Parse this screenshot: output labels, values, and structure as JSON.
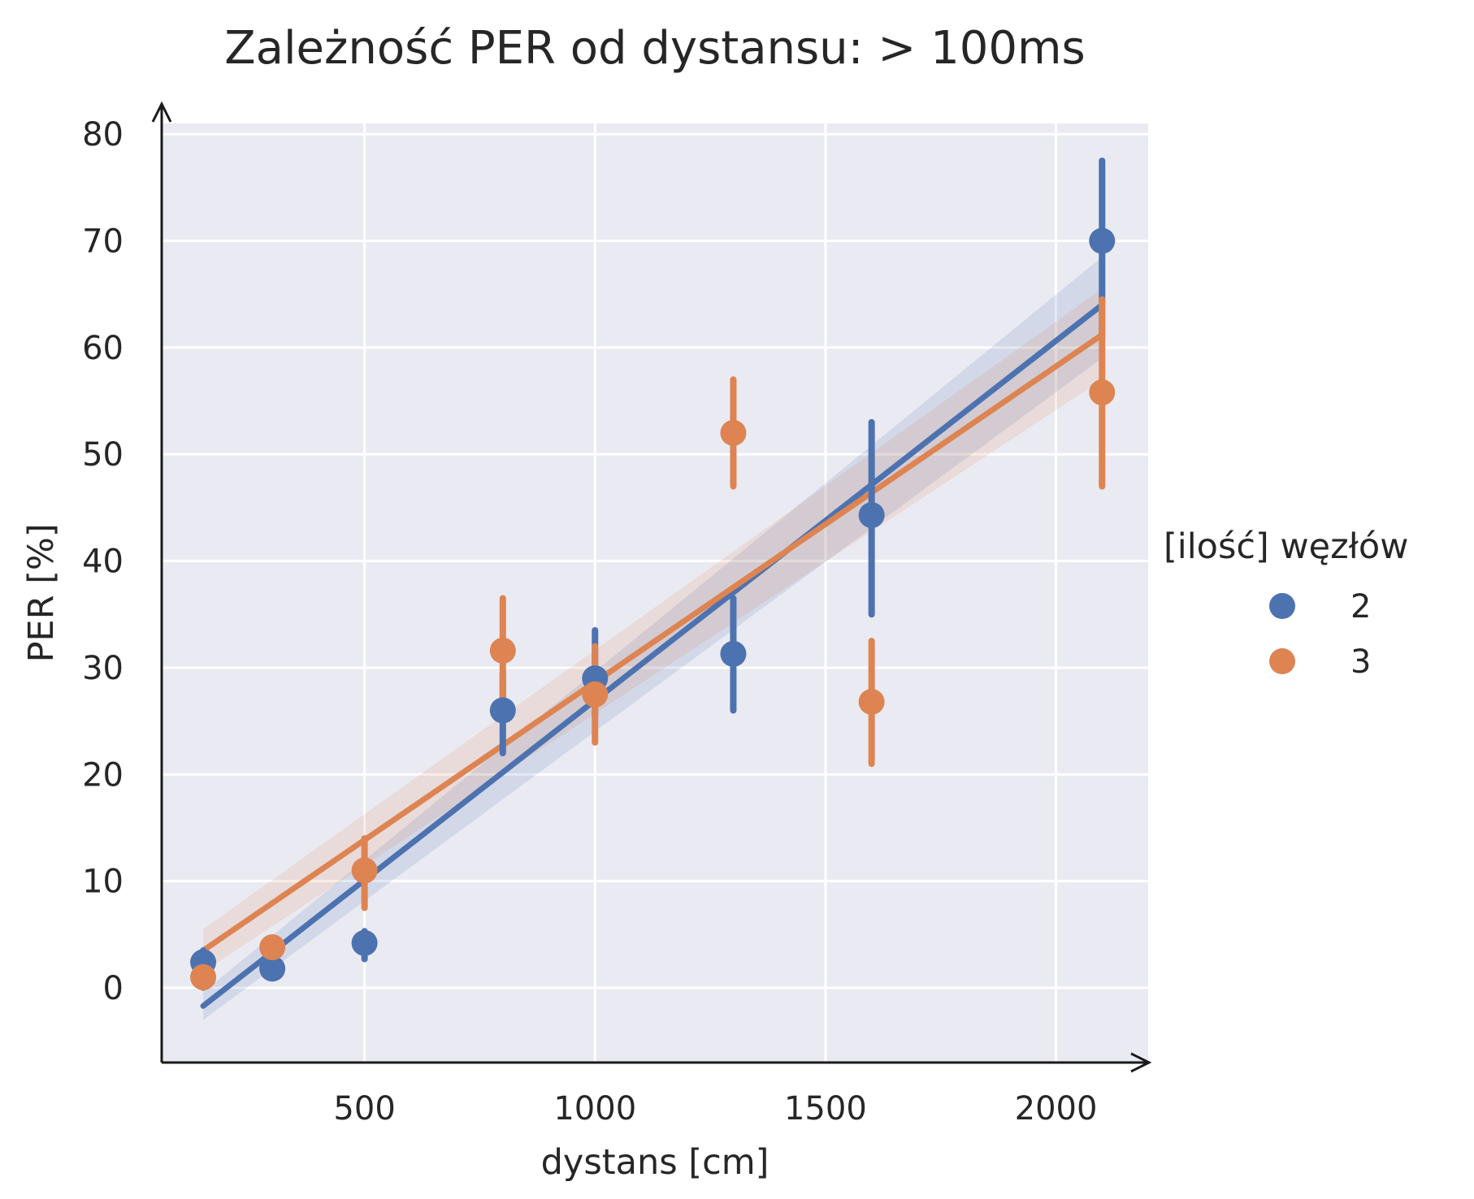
{
  "chart_data": {
    "type": "scatter",
    "title": "Zależność PER od dystansu: > 100ms",
    "xlabel": "dystans [cm]",
    "ylabel": "PER [%]",
    "xlim": [
      60,
      2200
    ],
    "ylim": [
      -7,
      81
    ],
    "xticks": [
      500,
      1000,
      1500,
      2000
    ],
    "yticks": [
      0,
      10,
      20,
      30,
      40,
      50,
      60,
      70,
      80
    ],
    "grid": true,
    "legend": {
      "title": "[ilość] węzłów",
      "position": "right"
    },
    "series": [
      {
        "name": "2",
        "color": "#4c72b0",
        "points": [
          {
            "x": 150,
            "y": 2.4,
            "err": [
              1.0,
              3.5
            ]
          },
          {
            "x": 300,
            "y": 1.8,
            "err": [
              0.9,
              3.0
            ]
          },
          {
            "x": 500,
            "y": 4.2,
            "err": [
              2.7,
              5.3
            ]
          },
          {
            "x": 800,
            "y": 26.0,
            "err": [
              22.0,
              29.5
            ]
          },
          {
            "x": 1000,
            "y": 29.0,
            "err": [
              25.5,
              33.5
            ]
          },
          {
            "x": 1300,
            "y": 31.3,
            "err": [
              26.0,
              36.5
            ]
          },
          {
            "x": 1600,
            "y": 44.3,
            "err": [
              35.0,
              53.0
            ]
          },
          {
            "x": 2100,
            "y": 70.0,
            "err": [
              61.0,
              77.5
            ]
          }
        ],
        "regression": {
          "x": [
            150,
            2100
          ],
          "y": [
            -1.7,
            64.0
          ],
          "ci_start": [
            -3.0,
            -0.4
          ],
          "ci_end": [
            59.0,
            68.5
          ]
        }
      },
      {
        "name": "3",
        "color": "#dd8452",
        "points": [
          {
            "x": 150,
            "y": 1.0,
            "err": [
              0.0,
              2.0
            ]
          },
          {
            "x": 300,
            "y": 3.8,
            "err": [
              2.7,
              4.6
            ]
          },
          {
            "x": 500,
            "y": 11.0,
            "err": [
              7.5,
              14.0
            ]
          },
          {
            "x": 800,
            "y": 31.6,
            "err": [
              26.5,
              36.5
            ]
          },
          {
            "x": 1000,
            "y": 27.5,
            "err": [
              23.0,
              32.0
            ]
          },
          {
            "x": 1300,
            "y": 52.0,
            "err": [
              47.0,
              57.0
            ]
          },
          {
            "x": 1600,
            "y": 26.8,
            "err": [
              21.0,
              32.5
            ]
          },
          {
            "x": 2100,
            "y": 55.8,
            "err": [
              47.0,
              64.5
            ]
          }
        ],
        "regression": {
          "x": [
            150,
            2100
          ],
          "y": [
            3.5,
            61.2
          ],
          "ci_start": [
            1.5,
            5.5
          ],
          "ci_end": [
            57.0,
            65.5
          ]
        }
      }
    ]
  }
}
